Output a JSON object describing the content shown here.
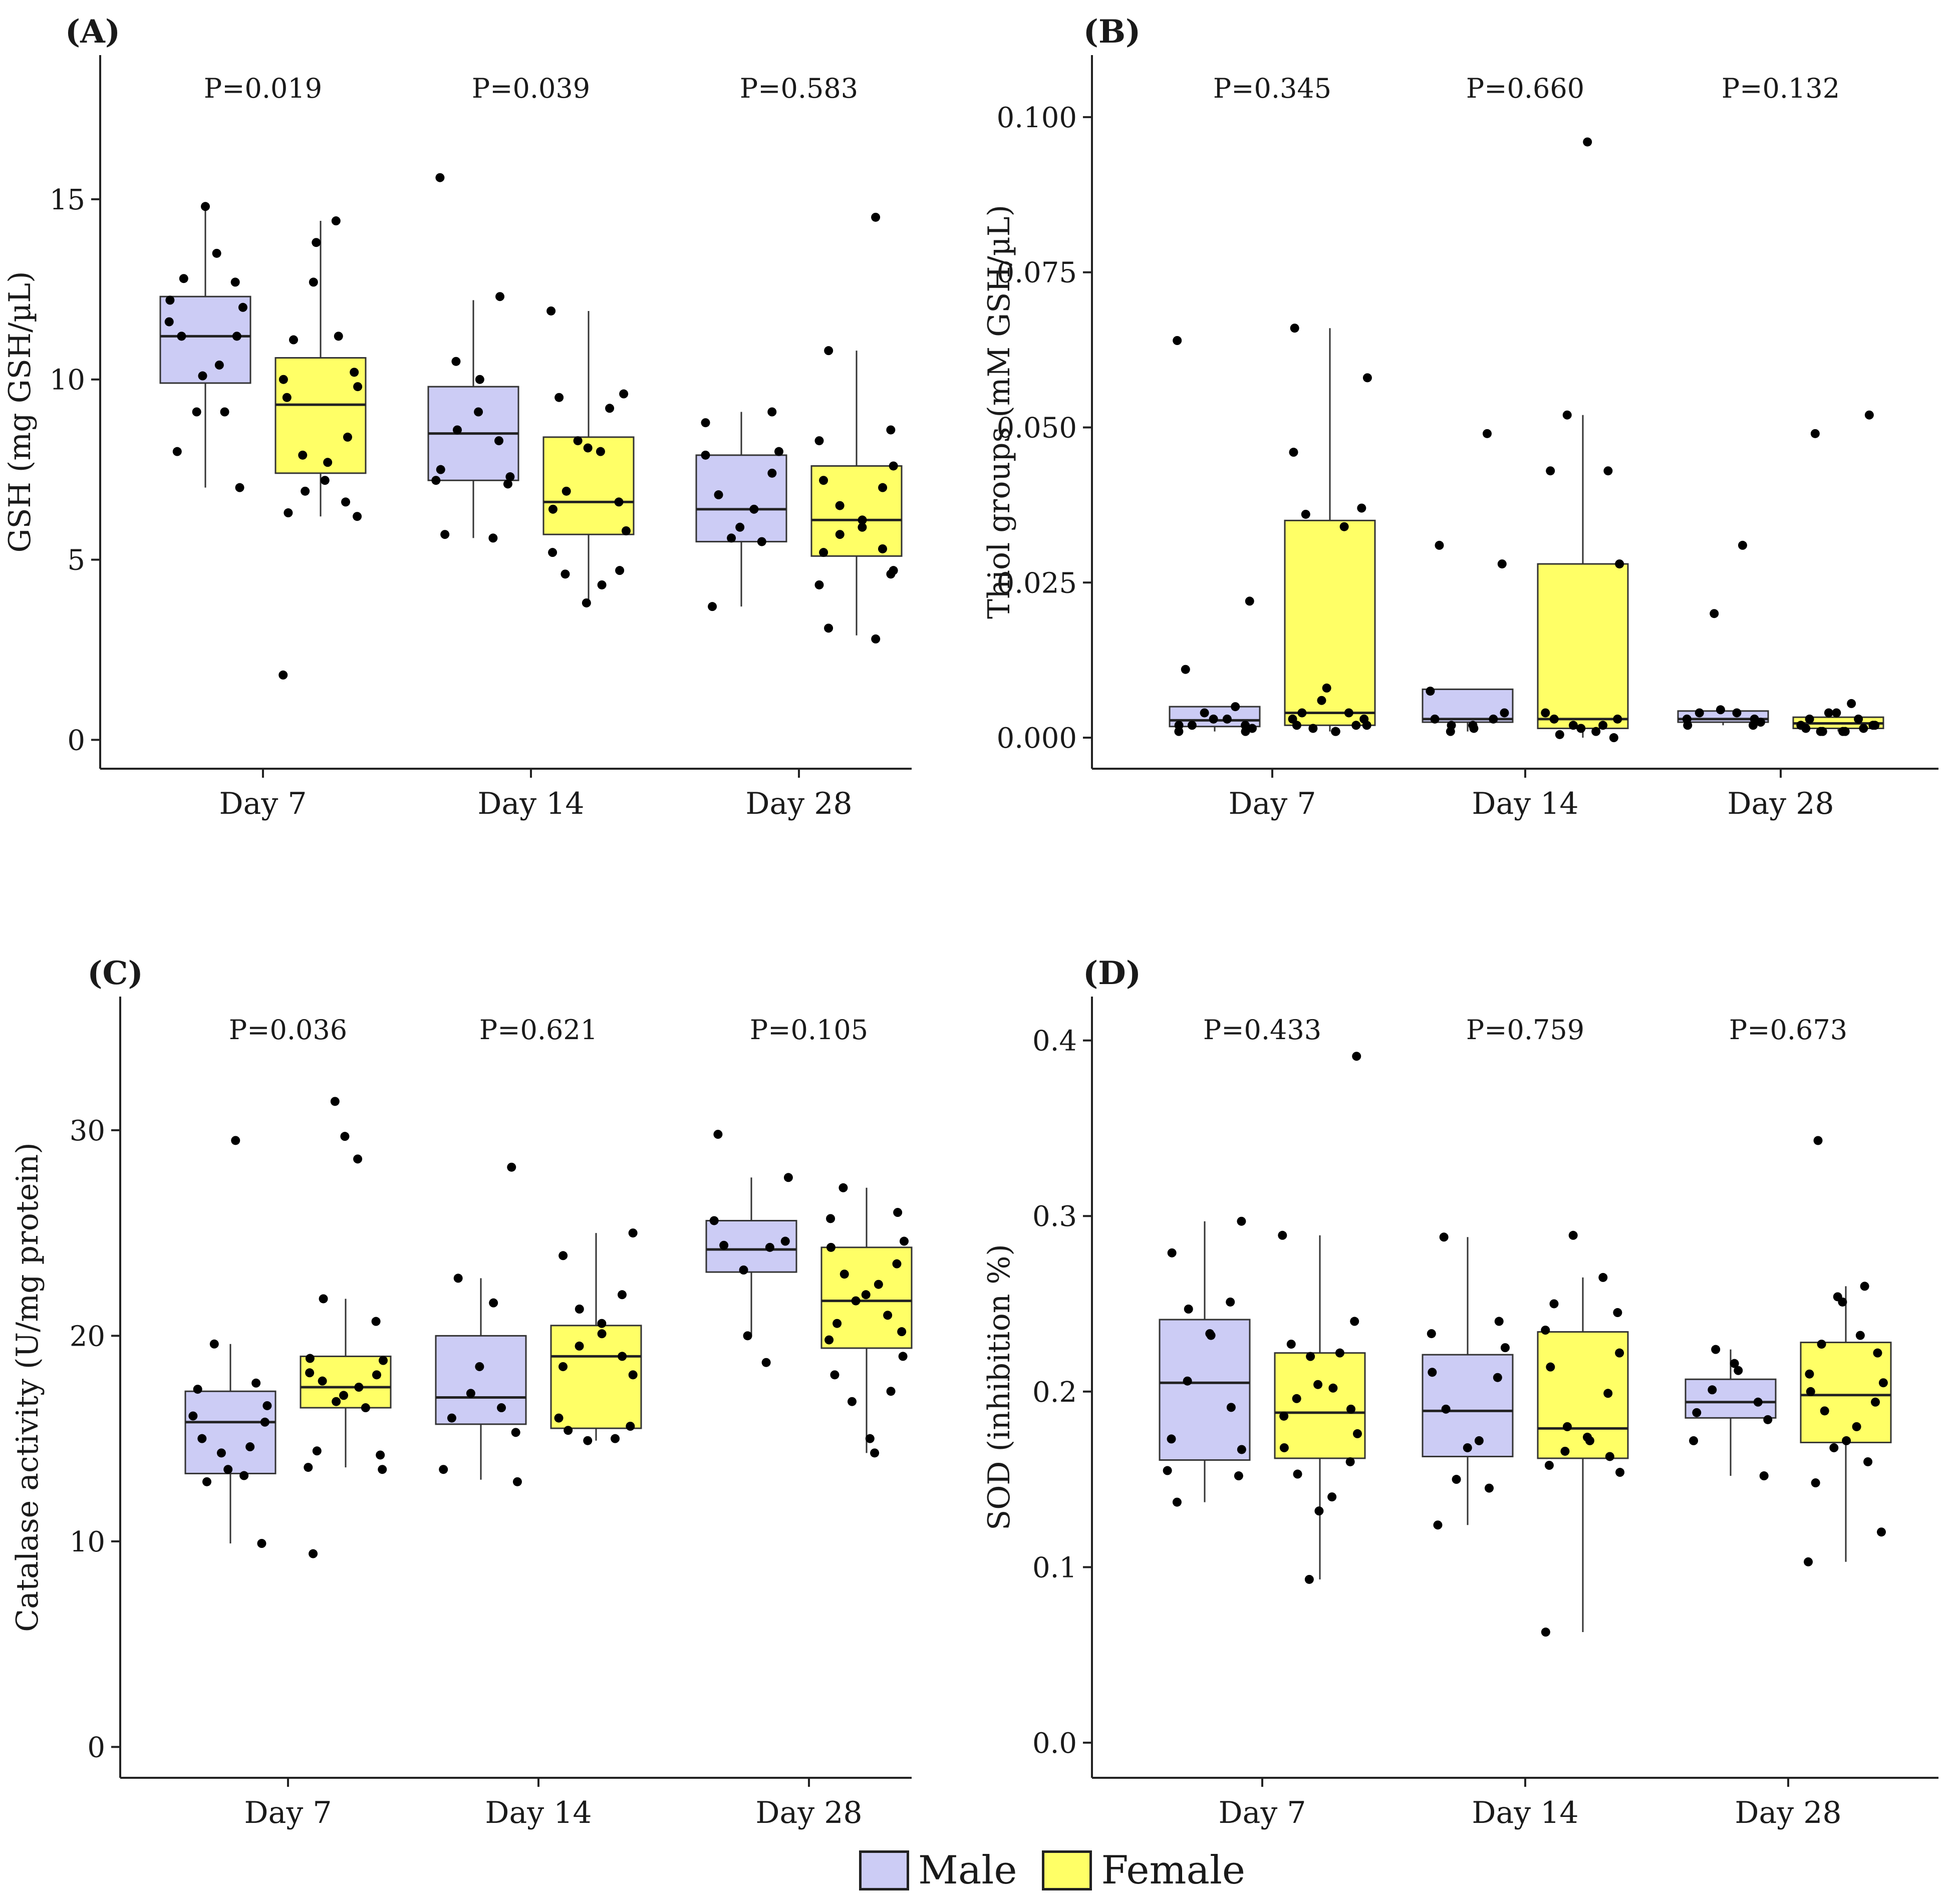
{
  "legend": {
    "male_label": "Male",
    "female_label": "Female",
    "male_color": "#CCCCF5",
    "female_color": "#FFFF66"
  },
  "chart_data": [
    {
      "panel": "A",
      "label": "(A)",
      "type": "box",
      "ylabel": "GSH (mg GSH/µL)",
      "xlabel": "",
      "categories": [
        "Day 7",
        "Day 14",
        "Day 28"
      ],
      "ylim": [
        -0.8,
        19.0
      ],
      "yticks": [
        0,
        5,
        10,
        15
      ],
      "ytick_labels": [
        "0",
        "5",
        "10",
        "15"
      ],
      "pvalues": [
        "P=0.019",
        "P=0.039",
        "P=0.583"
      ],
      "series": [
        {
          "name": "Male",
          "boxes": [
            {
              "min": 7.0,
              "q1": 9.9,
              "median": 11.2,
              "q3": 12.3,
              "max": 14.8
            },
            {
              "min": 5.6,
              "q1": 7.2,
              "median": 8.5,
              "q3": 9.8,
              "max": 12.2
            },
            {
              "min": 3.7,
              "q1": 5.5,
              "median": 6.4,
              "q3": 7.9,
              "max": 9.1
            }
          ],
          "points": [
            [
              14.8,
              13.5,
              12.8,
              12.7,
              12.2,
              12.0,
              11.6,
              11.2,
              11.2,
              10.4,
              10.1,
              9.1,
              9.1,
              8.0,
              7.0
            ],
            [
              15.6,
              12.3,
              10.5,
              10.0,
              9.1,
              8.6,
              8.3,
              7.5,
              7.3,
              7.2,
              7.1,
              5.7,
              5.6
            ],
            [
              9.1,
              8.8,
              8.0,
              7.9,
              7.4,
              6.8,
              6.4,
              5.9,
              5.6,
              5.5,
              3.7
            ]
          ]
        },
        {
          "name": "Female",
          "boxes": [
            {
              "min": 6.2,
              "q1": 7.4,
              "median": 9.3,
              "q3": 10.6,
              "max": 14.4
            },
            {
              "min": 3.8,
              "q1": 5.7,
              "median": 6.6,
              "q3": 8.4,
              "max": 11.9
            },
            {
              "min": 2.9,
              "q1": 5.1,
              "median": 6.1,
              "q3": 7.6,
              "max": 10.8
            }
          ],
          "points": [
            [
              14.4,
              13.8,
              12.7,
              11.2,
              11.1,
              10.2,
              10.0,
              9.8,
              9.5,
              8.4,
              7.9,
              7.7,
              7.2,
              6.9,
              6.6,
              6.3,
              6.2,
              1.8
            ],
            [
              11.9,
              9.6,
              9.5,
              9.2,
              8.3,
              8.1,
              8.0,
              6.9,
              6.6,
              6.4,
              5.8,
              5.2,
              4.7,
              4.6,
              4.3,
              3.8
            ],
            [
              14.5,
              10.8,
              8.6,
              8.3,
              7.6,
              7.2,
              7.0,
              6.5,
              6.1,
              5.9,
              5.7,
              5.3,
              5.2,
              4.7,
              4.3,
              4.6,
              3.1,
              2.8
            ]
          ]
        }
      ]
    },
    {
      "panel": "B",
      "label": "(B)",
      "type": "box",
      "ylabel": "Thiol groups (mM GSH/µL)",
      "xlabel": "",
      "categories": [
        "Day 7",
        "Day 14",
        "Day 28"
      ],
      "ylim": [
        -0.005,
        0.11
      ],
      "yticks": [
        0.0,
        0.025,
        0.05,
        0.075,
        0.1
      ],
      "ytick_labels": [
        "0.000",
        "0.025",
        "0.050",
        "0.075",
        "0.100"
      ],
      "pvalues": [
        "P=0.345",
        "P=0.660",
        "P=0.132"
      ],
      "series": [
        {
          "name": "Male",
          "boxes": [
            {
              "min": 0.001,
              "q1": 0.0018,
              "median": 0.0028,
              "q3": 0.005,
              "max": 0.005
            },
            {
              "min": 0.001,
              "q1": 0.0025,
              "median": 0.003,
              "q3": 0.0078,
              "max": 0.0078
            },
            {
              "min": 0.002,
              "q1": 0.0025,
              "median": 0.003,
              "q3": 0.0043,
              "max": 0.0045
            }
          ],
          "points": [
            [
              0.064,
              0.022,
              0.011,
              0.005,
              0.004,
              0.003,
              0.003,
              0.002,
              0.002,
              0.002,
              0.0015,
              0.001,
              0.001
            ],
            [
              0.049,
              0.031,
              0.028,
              0.0075,
              0.004,
              0.003,
              0.003,
              0.002,
              0.002,
              0.0015,
              0.001
            ],
            [
              0.031,
              0.02,
              0.0045,
              0.004,
              0.004,
              0.003,
              0.003,
              0.0025,
              0.002,
              0.002
            ]
          ]
        },
        {
          "name": "Female",
          "boxes": [
            {
              "min": 0.001,
              "q1": 0.002,
              "median": 0.004,
              "q3": 0.035,
              "max": 0.066
            },
            {
              "min": 0.0,
              "q1": 0.0015,
              "median": 0.003,
              "q3": 0.028,
              "max": 0.052
            },
            {
              "min": 0.001,
              "q1": 0.0015,
              "median": 0.0023,
              "q3": 0.0033,
              "max": 0.0045
            }
          ],
          "points": [
            [
              0.066,
              0.058,
              0.046,
              0.037,
              0.036,
              0.034,
              0.008,
              0.006,
              0.004,
              0.004,
              0.003,
              0.003,
              0.002,
              0.002,
              0.002,
              0.0015,
              0.001,
              0.001
            ],
            [
              0.096,
              0.052,
              0.043,
              0.043,
              0.028,
              0.004,
              0.003,
              0.003,
              0.002,
              0.002,
              0.0015,
              0.001,
              0.0005,
              0.0
            ],
            [
              0.052,
              0.049,
              0.0055,
              0.004,
              0.004,
              0.003,
              0.003,
              0.002,
              0.002,
              0.002,
              0.0015,
              0.0015,
              0.001,
              0.001,
              0.001,
              0.001
            ]
          ]
        }
      ]
    },
    {
      "panel": "C",
      "label": "(C)",
      "type": "box",
      "ylabel": "Catalase activity (U/mg protein)",
      "xlabel": "",
      "categories": [
        "Day 7",
        "Day 14",
        "Day 28"
      ],
      "ylim": [
        -1.5,
        36.5
      ],
      "yticks": [
        0,
        10,
        20,
        30
      ],
      "ytick_labels": [
        "0",
        "10",
        "20",
        "30"
      ],
      "pvalues": [
        "P=0.036",
        "P=0.621",
        "P=0.105"
      ],
      "series": [
        {
          "name": "Male",
          "boxes": [
            {
              "min": 9.9,
              "q1": 13.3,
              "median": 15.8,
              "q3": 17.3,
              "max": 19.6
            },
            {
              "min": 13.0,
              "q1": 15.7,
              "median": 17.0,
              "q3": 20.0,
              "max": 22.8
            },
            {
              "min": 20.0,
              "q1": 23.1,
              "median": 24.2,
              "q3": 25.6,
              "max": 27.7
            }
          ],
          "points": [
            [
              29.5,
              19.6,
              17.7,
              17.4,
              16.6,
              16.1,
              15.8,
              15.0,
              14.6,
              14.3,
              13.5,
              13.2,
              12.9,
              9.9
            ],
            [
              28.2,
              22.8,
              21.6,
              18.5,
              17.2,
              16.5,
              16.0,
              15.3,
              13.5,
              12.9
            ],
            [
              29.8,
              27.7,
              25.6,
              24.6,
              24.4,
              24.3,
              23.2,
              20.0,
              18.7
            ]
          ]
        },
        {
          "name": "Female",
          "boxes": [
            {
              "min": 13.6,
              "q1": 16.5,
              "median": 17.5,
              "q3": 19.0,
              "max": 21.8
            },
            {
              "min": 14.9,
              "q1": 15.5,
              "median": 19.0,
              "q3": 20.5,
              "max": 25.0
            },
            {
              "min": 14.3,
              "q1": 19.4,
              "median": 21.7,
              "q3": 24.3,
              "max": 27.2
            }
          ],
          "points": [
            [
              31.4,
              29.7,
              28.6,
              21.8,
              20.7,
              18.9,
              18.8,
              18.2,
              18.1,
              17.8,
              17.5,
              17.1,
              16.8,
              16.5,
              14.4,
              14.2,
              13.6,
              13.5,
              9.4
            ],
            [
              25.0,
              23.9,
              22.0,
              21.3,
              20.6,
              20.1,
              19.5,
              19.0,
              18.5,
              18.1,
              16.0,
              15.6,
              15.4,
              15.0,
              14.9
            ],
            [
              27.2,
              26.0,
              25.7,
              24.6,
              24.3,
              23.5,
              23.0,
              22.5,
              22.0,
              21.7,
              21.0,
              20.6,
              20.2,
              19.8,
              19.0,
              18.1,
              17.3,
              16.8,
              15.0,
              14.3
            ]
          ]
        }
      ]
    },
    {
      "panel": "D",
      "label": "(D)",
      "type": "box",
      "ylabel": "SOD (inhibition %)",
      "xlabel": "",
      "categories": [
        "Day 7",
        "Day 14",
        "Day 28"
      ],
      "ylim": [
        -0.02,
        0.425
      ],
      "yticks": [
        0.0,
        0.1,
        0.2,
        0.3,
        0.4
      ],
      "ytick_labels": [
        "0.0",
        "0.1",
        "0.2",
        "0.3",
        "0.4"
      ],
      "pvalues": [
        "P=0.433",
        "P=0.759",
        "P=0.673"
      ],
      "series": [
        {
          "name": "Male",
          "boxes": [
            {
              "min": 0.137,
              "q1": 0.161,
              "median": 0.205,
              "q3": 0.241,
              "max": 0.297
            },
            {
              "min": 0.124,
              "q1": 0.163,
              "median": 0.189,
              "q3": 0.221,
              "max": 0.288
            },
            {
              "min": 0.152,
              "q1": 0.185,
              "median": 0.194,
              "q3": 0.207,
              "max": 0.224
            }
          ],
          "points": [
            [
              0.297,
              0.279,
              0.251,
              0.247,
              0.233,
              0.232,
              0.206,
              0.191,
              0.173,
              0.167,
              0.155,
              0.152,
              0.137
            ],
            [
              0.288,
              0.24,
              0.233,
              0.225,
              0.211,
              0.208,
              0.19,
              0.172,
              0.168,
              0.15,
              0.145,
              0.124
            ],
            [
              0.224,
              0.216,
              0.212,
              0.201,
              0.194,
              0.188,
              0.184,
              0.172,
              0.152
            ]
          ]
        },
        {
          "name": "Female",
          "boxes": [
            {
              "min": 0.093,
              "q1": 0.162,
              "median": 0.188,
              "q3": 0.222,
              "max": 0.289
            },
            {
              "min": 0.063,
              "q1": 0.162,
              "median": 0.179,
              "q3": 0.234,
              "max": 0.265
            },
            {
              "min": 0.103,
              "q1": 0.171,
              "median": 0.198,
              "q3": 0.228,
              "max": 0.26
            }
          ],
          "points": [
            [
              0.391,
              0.289,
              0.24,
              0.227,
              0.222,
              0.22,
              0.204,
              0.202,
              0.196,
              0.19,
              0.186,
              0.176,
              0.168,
              0.16,
              0.153,
              0.14,
              0.132,
              0.093
            ],
            [
              0.289,
              0.265,
              0.25,
              0.245,
              0.235,
              0.222,
              0.214,
              0.199,
              0.18,
              0.174,
              0.172,
              0.166,
              0.163,
              0.158,
              0.154,
              0.063
            ],
            [
              0.343,
              0.26,
              0.254,
              0.251,
              0.232,
              0.227,
              0.222,
              0.21,
              0.205,
              0.2,
              0.194,
              0.189,
              0.18,
              0.172,
              0.168,
              0.16,
              0.148,
              0.12,
              0.103
            ]
          ]
        }
      ]
    }
  ]
}
